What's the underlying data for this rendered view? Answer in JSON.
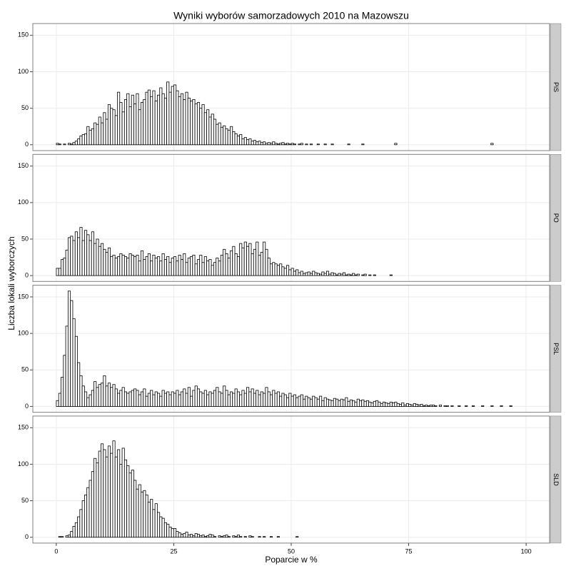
{
  "chart_data": {
    "type": "histogram",
    "title": "Wyniki wyborów samorzadowych 2010 na Mazowszu",
    "xlabel": "Poparcie w %",
    "ylabel": "Liczba lokali wyborczych",
    "color": "#ffffff",
    "edgecolor": "#000000",
    "grid": true,
    "xlim": [
      -5,
      105
    ],
    "xticks": [
      0,
      25,
      50,
      75,
      100
    ],
    "ylim": [
      -8,
      166
    ],
    "yticks": [
      0,
      50,
      100,
      150
    ],
    "bins": [
      0,
      0.5,
      1,
      1.5,
      2,
      2.5,
      3,
      3.5,
      4,
      4.5,
      5,
      5.5,
      6,
      6.5,
      7,
      7.5,
      8,
      8.5,
      9,
      9.5,
      10,
      10.5,
      11,
      11.5,
      12,
      12.5,
      13,
      13.5,
      14,
      14.5,
      15,
      15.5,
      16,
      16.5,
      17,
      17.5,
      18,
      18.5,
      19,
      19.5,
      20,
      20.5,
      21,
      21.5,
      22,
      22.5,
      23,
      23.5,
      24,
      24.5,
      25,
      25.5,
      26,
      26.5,
      27,
      27.5,
      28,
      28.5,
      29,
      29.5,
      30,
      30.5,
      31,
      31.5,
      32,
      32.5,
      33,
      33.5,
      34,
      34.5,
      35,
      35.5,
      36,
      36.5,
      37,
      37.5,
      38,
      38.5,
      39,
      39.5,
      40,
      40.5,
      41,
      41.5,
      42,
      42.5,
      43,
      43.5,
      44,
      44.5,
      45,
      45.5,
      46,
      46.5,
      47,
      47.5,
      48,
      48.5,
      49,
      49.5,
      50,
      50.5,
      51,
      51.5,
      52,
      52.5,
      53,
      53.5,
      54,
      54.5,
      55,
      55.5,
      56,
      56.5,
      57,
      57.5,
      58,
      58.5,
      59,
      59.5,
      60,
      60.5,
      61,
      61.5,
      62,
      62.5,
      63,
      63.5,
      64,
      64.5,
      65,
      65.5,
      66,
      66.5,
      67,
      67.5,
      68,
      68.5,
      69,
      69.5,
      70,
      70.5,
      71,
      71.5,
      72,
      72.5,
      73,
      73.5,
      74,
      74.5,
      75,
      75.5,
      76,
      76.5,
      77,
      77.5,
      78,
      78.5,
      79,
      79.5,
      80,
      80.5,
      81,
      81.5,
      82,
      82.5,
      83,
      83.5,
      84,
      84.5,
      85,
      85.5,
      86,
      86.5,
      87,
      87.5,
      88,
      88.5,
      89,
      89.5,
      90,
      90.5,
      91,
      91.5,
      92,
      92.5,
      93,
      93.5,
      94,
      94.5,
      95,
      95.5,
      96,
      96.5,
      97,
      97.5,
      98,
      98.5,
      99,
      99.5,
      100
    ],
    "facets": [
      {
        "name": "PiS",
        "values": [
          2,
          1,
          0,
          1,
          0,
          2,
          1,
          3,
          5,
          8,
          12,
          14,
          15,
          25,
          20,
          22,
          30,
          28,
          38,
          30,
          44,
          35,
          55,
          50,
          48,
          40,
          72,
          58,
          45,
          62,
          70,
          52,
          68,
          56,
          70,
          48,
          58,
          62,
          72,
          75,
          66,
          74,
          60,
          68,
          78,
          70,
          64,
          86,
          72,
          80,
          82,
          74,
          66,
          70,
          62,
          72,
          64,
          60,
          62,
          56,
          58,
          50,
          55,
          44,
          48,
          38,
          42,
          35,
          28,
          30,
          24,
          26,
          22,
          20,
          25,
          18,
          15,
          12,
          14,
          8,
          10,
          7,
          8,
          5,
          6,
          4,
          5,
          3,
          4,
          2,
          3,
          2,
          4,
          2,
          1,
          2,
          3,
          1,
          2,
          1,
          2,
          1,
          0,
          1,
          2,
          0,
          1,
          0,
          1,
          0,
          0,
          1,
          0,
          0,
          1,
          0,
          0,
          1,
          0,
          0,
          0,
          0,
          0,
          0,
          1,
          0,
          0,
          0,
          0,
          0,
          1,
          0,
          0,
          0,
          0,
          0,
          0,
          0,
          0,
          0,
          0,
          0,
          0,
          0,
          2,
          0,
          0,
          0,
          0,
          0,
          0,
          0,
          0,
          0,
          0,
          0,
          0,
          0,
          0,
          0,
          0,
          0,
          0,
          0,
          0,
          0,
          0,
          0,
          0,
          0,
          0,
          0,
          0,
          0,
          0,
          0,
          0,
          0,
          0,
          0,
          0,
          0,
          0,
          0,
          0,
          2,
          0,
          0,
          0,
          0,
          0,
          0,
          0,
          0,
          0,
          0,
          0,
          0,
          0,
          0
        ]
      },
      {
        "name": "PO",
        "values": [
          10,
          10,
          22,
          24,
          35,
          52,
          54,
          48,
          60,
          52,
          66,
          48,
          62,
          56,
          48,
          60,
          44,
          50,
          40,
          44,
          36,
          32,
          38,
          26,
          28,
          24,
          26,
          30,
          28,
          26,
          24,
          30,
          28,
          26,
          28,
          20,
          34,
          22,
          26,
          30,
          20,
          28,
          24,
          26,
          20,
          30,
          22,
          26,
          18,
          24,
          26,
          20,
          28,
          22,
          30,
          18,
          24,
          26,
          28,
          16,
          22,
          28,
          18,
          26,
          20,
          22,
          14,
          18,
          24,
          20,
          28,
          36,
          30,
          24,
          34,
          40,
          30,
          26,
          44,
          38,
          46,
          40,
          44,
          30,
          36,
          46,
          28,
          32,
          46,
          36,
          24,
          16,
          18,
          16,
          14,
          16,
          12,
          10,
          14,
          8,
          10,
          6,
          8,
          4,
          6,
          3,
          4,
          5,
          3,
          6,
          4,
          3,
          2,
          5,
          3,
          6,
          2,
          4,
          3,
          1,
          3,
          2,
          4,
          1,
          2,
          1,
          3,
          1,
          2,
          0,
          1,
          2,
          0,
          1,
          0,
          1,
          0,
          0,
          0,
          0,
          0,
          0,
          1,
          0,
          0,
          0,
          0,
          0,
          0,
          0,
          0,
          0,
          0,
          0,
          0,
          0,
          0,
          0,
          0,
          0,
          0,
          0,
          0,
          0,
          0,
          0,
          0,
          0,
          0,
          0,
          0,
          0,
          0,
          0,
          0,
          0,
          0,
          0,
          0,
          0,
          0,
          0,
          0,
          0,
          0,
          0,
          0,
          0,
          0,
          0,
          0,
          0,
          0,
          0,
          0,
          0,
          0,
          0,
          0,
          0
        ]
      },
      {
        "name": "PSL",
        "values": [
          8,
          18,
          40,
          70,
          110,
          158,
          145,
          120,
          96,
          60,
          42,
          28,
          20,
          12,
          16,
          22,
          34,
          26,
          30,
          32,
          42,
          28,
          32,
          26,
          30,
          24,
          18,
          22,
          26,
          20,
          18,
          20,
          22,
          24,
          22,
          16,
          20,
          24,
          14,
          18,
          22,
          16,
          20,
          18,
          14,
          22,
          18,
          20,
          16,
          20,
          18,
          22,
          16,
          20,
          24,
          18,
          26,
          14,
          22,
          28,
          24,
          20,
          18,
          22,
          16,
          20,
          18,
          22,
          26,
          20,
          18,
          28,
          22,
          16,
          20,
          18,
          24,
          20,
          16,
          22,
          18,
          26,
          20,
          24,
          18,
          22,
          16,
          20,
          18,
          26,
          20,
          16,
          22,
          18,
          20,
          14,
          18,
          16,
          12,
          18,
          14,
          16,
          12,
          14,
          16,
          10,
          14,
          12,
          10,
          14,
          12,
          10,
          14,
          8,
          12,
          10,
          9,
          8,
          11,
          10,
          8,
          10,
          9,
          12,
          7,
          9,
          8,
          6,
          10,
          8,
          9,
          7,
          8,
          6,
          5,
          7,
          8,
          6,
          4,
          6,
          5,
          4,
          6,
          5,
          6,
          4,
          3,
          5,
          2,
          4,
          3,
          2,
          4,
          3,
          2,
          3,
          1,
          2,
          1,
          2,
          2,
          1,
          0,
          2,
          0,
          1,
          1,
          0,
          1,
          0,
          0,
          1,
          0,
          0,
          1,
          0,
          0,
          1,
          0,
          0,
          0,
          1,
          0,
          0,
          0,
          1,
          0,
          0,
          0,
          1,
          0,
          0,
          0,
          1,
          0,
          0,
          0,
          0,
          0,
          0
        ]
      },
      {
        "name": "SLD",
        "values": [
          0,
          1,
          1,
          0,
          2,
          3,
          8,
          15,
          20,
          28,
          38,
          50,
          58,
          68,
          78,
          90,
          108,
          102,
          118,
          128,
          120,
          110,
          125,
          115,
          132,
          110,
          120,
          100,
          122,
          106,
          98,
          88,
          92,
          78,
          66,
          72,
          62,
          64,
          58,
          48,
          52,
          38,
          46,
          34,
          28,
          26,
          20,
          18,
          14,
          12,
          12,
          8,
          6,
          4,
          5,
          7,
          3,
          4,
          2,
          5,
          4,
          2,
          3,
          1,
          2,
          4,
          3,
          1,
          0,
          2,
          1,
          2,
          3,
          1,
          0,
          2,
          1,
          3,
          1,
          0,
          1,
          0,
          2,
          1,
          0,
          0,
          1,
          0,
          1,
          0,
          0,
          1,
          0,
          0,
          1,
          0,
          0,
          0,
          0,
          0,
          0,
          0,
          1,
          0,
          0,
          0,
          0,
          0,
          0,
          0,
          0,
          0,
          0,
          0,
          0,
          0,
          0,
          0,
          0,
          0,
          0,
          0,
          0,
          0,
          0,
          0,
          0,
          0,
          0,
          0,
          0,
          0,
          0,
          0,
          0,
          0,
          0,
          0,
          0,
          0,
          0,
          0,
          0,
          0,
          0,
          0,
          0,
          0,
          0,
          0,
          0,
          0,
          0,
          0,
          0,
          0,
          0,
          0,
          0,
          0,
          0,
          0,
          0,
          0,
          0,
          0,
          0,
          0,
          0,
          0,
          0,
          0,
          0,
          0,
          0,
          0,
          0,
          0,
          0,
          0,
          0,
          0,
          0,
          0,
          0,
          0,
          0,
          0,
          0,
          0,
          0,
          0,
          0,
          0,
          0,
          0,
          0,
          0,
          0,
          0
        ]
      }
    ]
  }
}
